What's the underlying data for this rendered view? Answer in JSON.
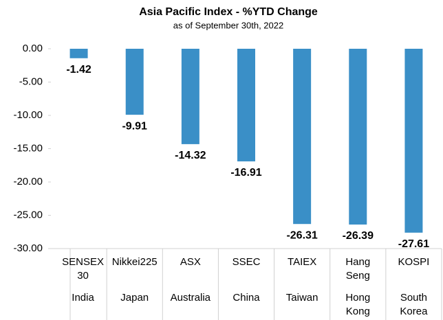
{
  "chart_data": {
    "type": "bar",
    "title": "Asia Pacific Index - %YTD Change",
    "subtitle": "as of September 30th, 2022",
    "categories": [
      "SENSEX 30",
      "Nikkei225",
      "ASX",
      "SSEC",
      "TAIEX",
      "Hang Seng",
      "KOSPI"
    ],
    "groups": [
      "India",
      "Japan",
      "Australia",
      "China",
      "Taiwan",
      "Hong Kong",
      "South Korea"
    ],
    "values": [
      -1.42,
      -9.91,
      -14.32,
      -16.91,
      -26.31,
      -26.39,
      -27.61
    ],
    "color": "#3a8fc7",
    "ylim": [
      -30,
      0
    ],
    "yticks": [
      {
        "value": 0,
        "label": "0.00"
      },
      {
        "value": -5,
        "label": "-5.00"
      },
      {
        "value": -10,
        "label": "-10.00"
      },
      {
        "value": -15,
        "label": "-15.00"
      },
      {
        "value": -20,
        "label": "-20.00"
      },
      {
        "value": -25,
        "label": "-25.00"
      },
      {
        "value": -30,
        "label": "-30.00"
      }
    ],
    "grid": false
  }
}
